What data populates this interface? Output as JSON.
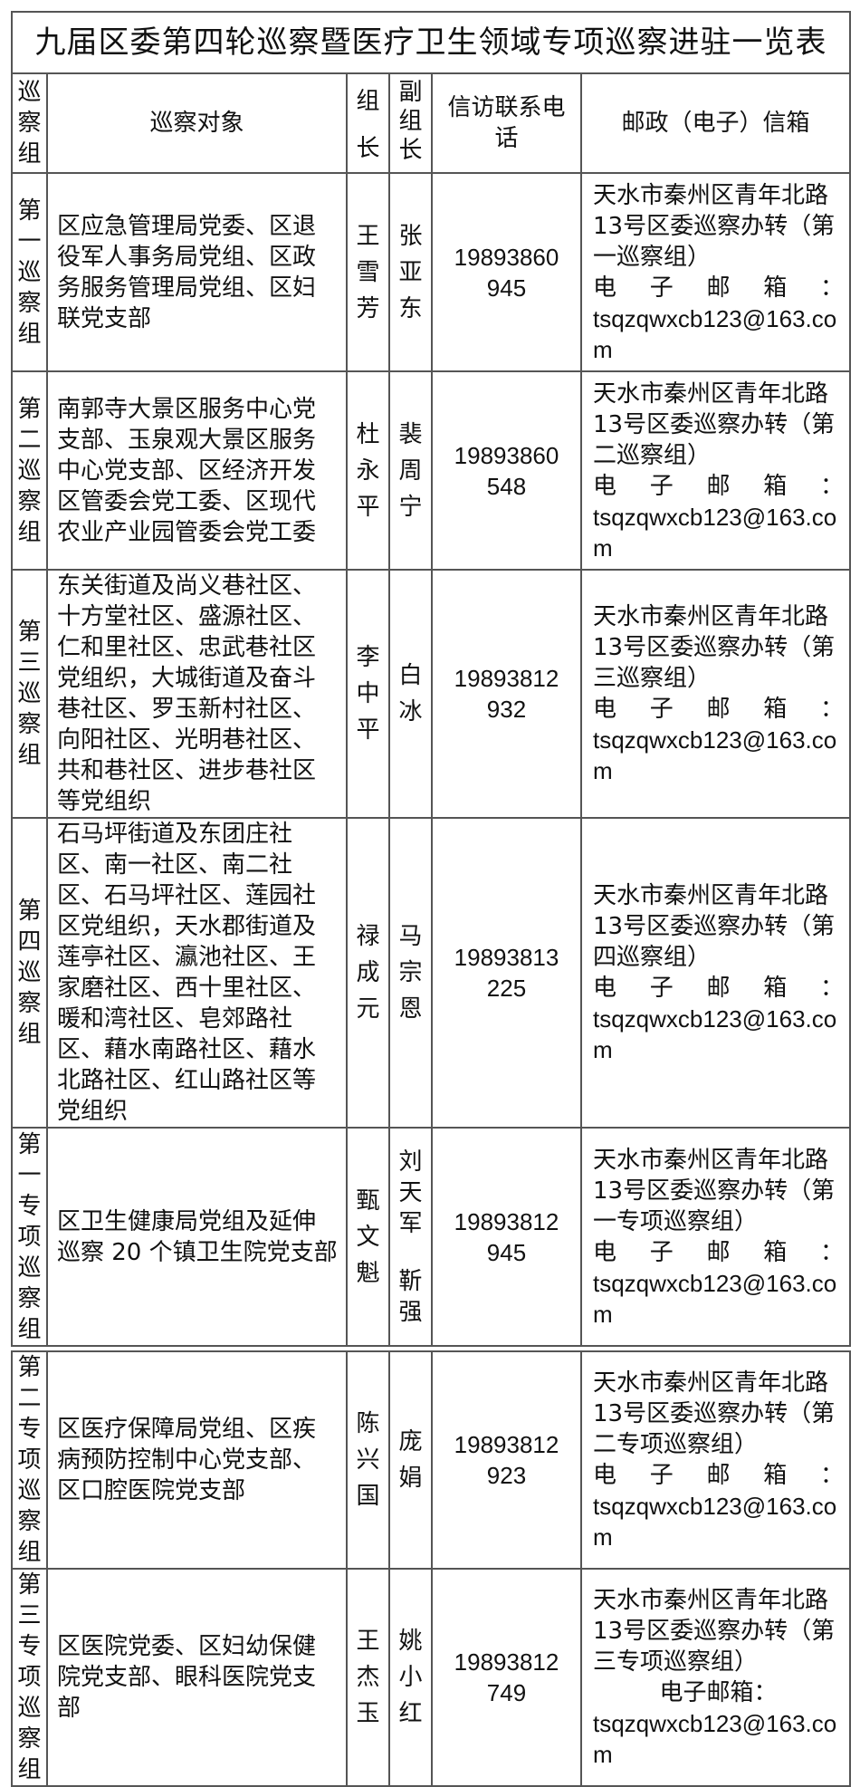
{
  "title": "九届区委第四轮巡察暨医疗卫生领域专项巡察进驻一览表",
  "headers": {
    "group": "巡察组",
    "target": "巡察对象",
    "leader": "组长",
    "vice": "副组长",
    "phone": "信访联系电话",
    "mail": "邮政（电子）信箱"
  },
  "rows": [
    {
      "group": "第一巡察组",
      "target": "区应急管理局党委、区退役军人事务局党组、区政务服务管理局党组、区妇联党支部",
      "leader": "王雪芳",
      "vice": "张亚东",
      "phone": "19893860945",
      "address": "天水市秦州区青年北路13号区委巡察办转（第一巡察组）",
      "email_label": "电子邮箱：",
      "email": "tsqzqwxcb123@163.com"
    },
    {
      "group": "第二巡察组",
      "target": "南郭寺大景区服务中心党支部、玉泉观大景区服务中心党支部、区经济开发区管委会党工委、区现代农业产业园管委会党工委",
      "leader": "杜永平",
      "vice": "裴周宁",
      "phone": "19893860548",
      "address": "天水市秦州区青年北路13号区委巡察办转（第二巡察组）",
      "email_label": "电子邮箱：",
      "email": "tsqzqwxcb123@163.com"
    },
    {
      "group": "第三巡察组",
      "target": "东关街道及尚义巷社区、十方堂社区、盛源社区、仁和里社区、忠武巷社区党组织，大城街道及奋斗巷社区、罗玉新村社区、向阳社区、光明巷社区、共和巷社区、进步巷社区等党组织",
      "leader": "李中平",
      "vice": "白冰",
      "phone": "19893812932",
      "address": "天水市秦州区青年北路13号区委巡察办转（第三巡察组）",
      "email_label": "电子邮箱：",
      "email": "tsqzqwxcb123@163.com"
    },
    {
      "group": "第四巡察组",
      "target": "石马坪街道及东团庄社区、南一社区、南二社区、石马坪社区、莲园社区党组织，天水郡街道及莲亭社区、瀛池社区、王家磨社区、西十里社区、暖和湾社区、皂郊路社区、藉水南路社区、藉水北路社区、红山路社区等党组织",
      "leader": "禄成元",
      "vice": "马宗恩",
      "phone": "19893813225",
      "address": "天水市秦州区青年北路13号区委巡察办转（第四巡察组）",
      "email_label": "电子邮箱：",
      "email": "tsqzqwxcb123@163.com"
    },
    {
      "group": "第一专项巡察组",
      "target": "区卫生健康局党组及延伸巡察 20 个镇卫生院党支部",
      "leader": "甄文魁",
      "vice": "刘天军",
      "vice2": "靳强",
      "phone": "19893812945",
      "address": "天水市秦州区青年北路13号区委巡察办转（第一专项巡察组）",
      "email_label": "电子邮箱：",
      "email": "tsqzqwxcb123@163.com"
    },
    {
      "group": "第二专项巡察组",
      "target": "区医疗保障局党组、区疾病预防控制中心党支部、区口腔医院党支部",
      "leader": "陈兴国",
      "vice": "庞娟",
      "phone": "19893812923",
      "address": "天水市秦州区青年北路13号区委巡察办转（第二专项巡察组）",
      "email_label": "电子邮箱：",
      "email": "tsqzqwxcb123@163.com"
    },
    {
      "group": "第三专项巡察组",
      "target": "区医院党委、区妇幼保健院党支部、眼科医院党支部",
      "leader": "王杰玉",
      "vice": "姚小红",
      "phone": "19893812749",
      "address": "天水市秦州区青年北路13号区委巡察办转（第三专项巡察组）",
      "email_label": "电子邮箱：",
      "email": "tsqzqwxcb123@163.com"
    }
  ]
}
